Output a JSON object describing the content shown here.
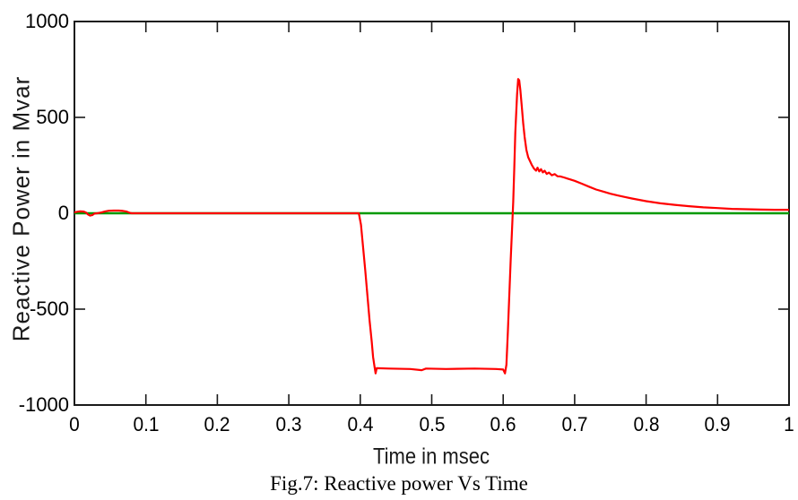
{
  "chart_data": {
    "type": "line",
    "title": "",
    "xlabel": "Time in msec",
    "ylabel": "Reactive Power in Mvar",
    "caption": "Fig.7: Reactive power Vs Time",
    "xlim": [
      0,
      1
    ],
    "ylim": [
      -1000,
      1000
    ],
    "grid": false,
    "legend": "none",
    "box": true,
    "tick_direction": "in",
    "xtick_values": [
      0,
      0.1,
      0.2,
      0.3,
      0.4,
      0.5,
      0.6,
      0.7,
      0.8,
      0.9,
      1
    ],
    "xtick_labels": [
      "0",
      "0.1",
      "0.2",
      "0.3",
      "0.4",
      "0.5",
      "0.6",
      "0.7",
      "0.8",
      "0.9",
      "1"
    ],
    "ytick_values": [
      -1000,
      -500,
      0,
      500,
      1000
    ],
    "ytick_labels": [
      "-1000",
      "-500",
      "0",
      "500",
      "1000"
    ],
    "axis_color": "#1a1a1a",
    "series": [
      {
        "name": "zero-reference",
        "color": "#009900",
        "width": 2.6,
        "points": [
          [
            0,
            0
          ],
          [
            1,
            0
          ]
        ]
      },
      {
        "name": "reactive-power",
        "color": "#ff0000",
        "width": 2.2,
        "points": [
          [
            0.0,
            4
          ],
          [
            0.004,
            8
          ],
          [
            0.008,
            10
          ],
          [
            0.013,
            9
          ],
          [
            0.016,
            4
          ],
          [
            0.019,
            -6
          ],
          [
            0.022,
            -12
          ],
          [
            0.025,
            -10
          ],
          [
            0.028,
            -2
          ],
          [
            0.032,
            0
          ],
          [
            0.038,
            4
          ],
          [
            0.043,
            10
          ],
          [
            0.048,
            13
          ],
          [
            0.055,
            14
          ],
          [
            0.062,
            14
          ],
          [
            0.068,
            12
          ],
          [
            0.073,
            9
          ],
          [
            0.077,
            3
          ],
          [
            0.08,
            0
          ],
          [
            0.2,
            0
          ],
          [
            0.398,
            0
          ],
          [
            0.401,
            -60
          ],
          [
            0.404,
            -180
          ],
          [
            0.407,
            -300
          ],
          [
            0.41,
            -430
          ],
          [
            0.413,
            -560
          ],
          [
            0.416,
            -670
          ],
          [
            0.418,
            -750
          ],
          [
            0.42,
            -800
          ],
          [
            0.4215,
            -835
          ],
          [
            0.423,
            -808
          ],
          [
            0.44,
            -810
          ],
          [
            0.47,
            -812
          ],
          [
            0.486,
            -818
          ],
          [
            0.492,
            -810
          ],
          [
            0.52,
            -812
          ],
          [
            0.56,
            -810
          ],
          [
            0.59,
            -812
          ],
          [
            0.6,
            -815
          ],
          [
            0.6025,
            -835
          ],
          [
            0.6045,
            -790
          ],
          [
            0.6065,
            -620
          ],
          [
            0.6085,
            -430
          ],
          [
            0.6105,
            -240
          ],
          [
            0.6125,
            -70
          ],
          [
            0.614,
            60
          ],
          [
            0.6155,
            240
          ],
          [
            0.617,
            420
          ],
          [
            0.618,
            500
          ],
          [
            0.6195,
            620
          ],
          [
            0.621,
            700
          ],
          [
            0.6225,
            693
          ],
          [
            0.624,
            645
          ],
          [
            0.626,
            560
          ],
          [
            0.628,
            470
          ],
          [
            0.63,
            398
          ],
          [
            0.6325,
            330
          ],
          [
            0.635,
            292
          ],
          [
            0.638,
            268
          ],
          [
            0.64,
            252
          ],
          [
            0.643,
            233
          ],
          [
            0.646,
            222
          ],
          [
            0.648,
            238
          ],
          [
            0.6505,
            218
          ],
          [
            0.653,
            230
          ],
          [
            0.6555,
            213
          ],
          [
            0.658,
            222
          ],
          [
            0.661,
            205
          ],
          [
            0.664,
            212
          ],
          [
            0.668,
            198
          ],
          [
            0.672,
            204
          ],
          [
            0.676,
            193
          ],
          [
            0.68,
            192
          ],
          [
            0.685,
            187
          ],
          [
            0.69,
            181
          ],
          [
            0.7,
            169
          ],
          [
            0.71,
            154
          ],
          [
            0.72,
            139
          ],
          [
            0.73,
            124
          ],
          [
            0.74,
            113
          ],
          [
            0.75,
            102
          ],
          [
            0.76,
            93
          ],
          [
            0.77,
            85
          ],
          [
            0.78,
            77
          ],
          [
            0.79,
            70
          ],
          [
            0.8,
            63
          ],
          [
            0.82,
            52
          ],
          [
            0.84,
            44
          ],
          [
            0.86,
            37
          ],
          [
            0.88,
            31
          ],
          [
            0.9,
            27
          ],
          [
            0.92,
            23
          ],
          [
            0.94,
            21
          ],
          [
            0.96,
            19
          ],
          [
            0.98,
            18
          ],
          [
            1.0,
            18
          ]
        ]
      }
    ]
  }
}
